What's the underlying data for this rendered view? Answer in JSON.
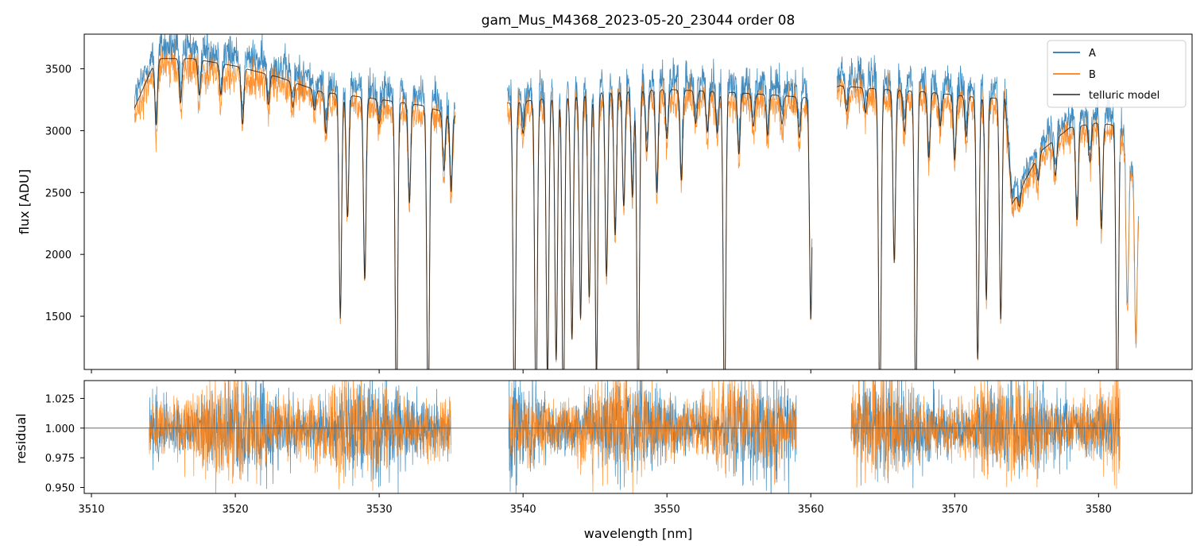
{
  "chart_data": [
    {
      "type": "line",
      "title": "gam_Mus_M4368_2023-05-20_23044  order 08",
      "xlabel": "",
      "ylabel": "flux [ADU]",
      "xlim": [
        3509.5,
        3586.5
      ],
      "ylim": [
        1070,
        3780
      ],
      "xticks": [
        3510,
        3520,
        3530,
        3540,
        3550,
        3560,
        3570,
        3580
      ],
      "yticks": [
        1500,
        2000,
        2500,
        3000,
        3500
      ],
      "ytick_labels": [
        "1500",
        "2000",
        "2500",
        "3000",
        "3500"
      ],
      "legend": {
        "position": "upper-right",
        "entries": [
          {
            "name": "A",
            "color": "#1f77b4"
          },
          {
            "name": "B",
            "color": "#ff7f0e"
          },
          {
            "name": "telluric model",
            "color": "#444444"
          }
        ]
      },
      "series": [
        {
          "name": "A",
          "color": "#1f77b4",
          "x_range": [
            3513.0,
            3582.8
          ],
          "noise": 0.022,
          "scale": 1.02
        },
        {
          "name": "B",
          "color": "#ff7f0e",
          "x_range": [
            3513.0,
            3582.8
          ],
          "noise": 0.022,
          "scale": 0.975
        },
        {
          "name": "telluric model",
          "color": "#222222",
          "x_range": [
            3513.0,
            3581.5
          ],
          "noise": 0.0,
          "scale": 0.995
        }
      ],
      "continuum_nodes": [
        [
          3513.0,
          3200
        ],
        [
          3514.5,
          3600
        ],
        [
          3517.0,
          3600
        ],
        [
          3520.0,
          3540
        ],
        [
          3523.0,
          3450
        ],
        [
          3526.0,
          3330
        ],
        [
          3530.0,
          3270
        ],
        [
          3533.0,
          3220
        ],
        [
          3535.2,
          3140
        ],
        [
          3539.0,
          3240
        ],
        [
          3542.0,
          3280
        ],
        [
          3546.0,
          3330
        ],
        [
          3550.0,
          3350
        ],
        [
          3554.0,
          3330
        ],
        [
          3558.0,
          3300
        ],
        [
          3560.0,
          3280
        ],
        [
          3562.0,
          3380
        ],
        [
          3565.0,
          3350
        ],
        [
          3568.0,
          3330
        ],
        [
          3572.0,
          3280
        ],
        [
          3573.5,
          3280
        ],
        [
          3574.0,
          2420
        ],
        [
          3576.0,
          2850
        ],
        [
          3578.0,
          3040
        ],
        [
          3580.0,
          3080
        ],
        [
          3581.5,
          3050
        ],
        [
          3582.8,
          2500
        ]
      ],
      "gaps": [
        [
          3535.3,
          3538.9
        ],
        [
          3560.1,
          3561.8
        ]
      ],
      "absorption_lines": [
        [
          3514.5,
          0.85
        ],
        [
          3516.2,
          0.9
        ],
        [
          3517.5,
          0.92
        ],
        [
          3519.0,
          0.93
        ],
        [
          3520.5,
          0.87
        ],
        [
          3522.3,
          0.93
        ],
        [
          3524.0,
          0.94
        ],
        [
          3525.5,
          0.95
        ],
        [
          3526.3,
          0.9
        ],
        [
          3527.3,
          0.45
        ],
        [
          3527.8,
          0.7
        ],
        [
          3529.0,
          0.55
        ],
        [
          3530.0,
          0.94
        ],
        [
          3531.2,
          0.2
        ],
        [
          3532.1,
          0.75
        ],
        [
          3533.4,
          0.2
        ],
        [
          3534.5,
          0.85
        ],
        [
          3535.0,
          0.8
        ],
        [
          3539.4,
          0.2
        ],
        [
          3540.0,
          0.92
        ],
        [
          3540.9,
          0.2
        ],
        [
          3541.7,
          0.3
        ],
        [
          3542.3,
          0.35
        ],
        [
          3542.8,
          0.2
        ],
        [
          3543.4,
          0.4
        ],
        [
          3544.0,
          0.45
        ],
        [
          3544.6,
          0.5
        ],
        [
          3545.1,
          0.3
        ],
        [
          3545.8,
          0.55
        ],
        [
          3546.4,
          0.65
        ],
        [
          3547.0,
          0.72
        ],
        [
          3547.6,
          0.74
        ],
        [
          3548.0,
          0.22
        ],
        [
          3548.6,
          0.85
        ],
        [
          3549.3,
          0.75
        ],
        [
          3550.0,
          0.88
        ],
        [
          3551.0,
          0.78
        ],
        [
          3552.0,
          0.92
        ],
        [
          3552.8,
          0.9
        ],
        [
          3553.5,
          0.9
        ],
        [
          3554.0,
          0.2
        ],
        [
          3555.0,
          0.85
        ],
        [
          3556.0,
          0.92
        ],
        [
          3557.0,
          0.9
        ],
        [
          3558.0,
          0.93
        ],
        [
          3559.2,
          0.9
        ],
        [
          3560.0,
          0.45
        ],
        [
          3562.5,
          0.94
        ],
        [
          3563.8,
          0.94
        ],
        [
          3564.8,
          0.2
        ],
        [
          3565.8,
          0.58
        ],
        [
          3566.5,
          0.9
        ],
        [
          3567.3,
          0.2
        ],
        [
          3568.2,
          0.84
        ],
        [
          3569.0,
          0.92
        ],
        [
          3570.0,
          0.84
        ],
        [
          3570.8,
          0.9
        ],
        [
          3571.6,
          0.35
        ],
        [
          3572.2,
          0.5
        ],
        [
          3573.2,
          0.45
        ],
        [
          3574.5,
          0.95
        ],
        [
          3575.8,
          0.93
        ],
        [
          3577.0,
          0.9
        ],
        [
          3578.5,
          0.75
        ],
        [
          3579.4,
          0.9
        ],
        [
          3580.2,
          0.72
        ],
        [
          3581.3,
          0.2
        ],
        [
          3582.0,
          0.55
        ],
        [
          3582.6,
          0.5
        ]
      ]
    },
    {
      "type": "line",
      "title": "",
      "xlabel": "wavelength [nm]",
      "ylabel": "residual",
      "xlim": [
        3509.5,
        3586.5
      ],
      "ylim": [
        0.945,
        1.04
      ],
      "xticks": [
        3510,
        3520,
        3530,
        3540,
        3550,
        3560,
        3570,
        3580
      ],
      "xtick_labels": [
        "3510",
        "3520",
        "3530",
        "3540",
        "3550",
        "3560",
        "3570",
        "3580"
      ],
      "yticks": [
        0.95,
        0.975,
        1.0,
        1.025
      ],
      "ytick_labels": [
        "0.950",
        "0.975",
        "1.000",
        "1.025"
      ],
      "reference_line": 1.0,
      "series": [
        {
          "name": "A",
          "color": "#1f77b4",
          "segments": [
            [
              3514.0,
              3535.0
            ],
            [
              3539.0,
              3559.0
            ],
            [
              3562.8,
              3581.5
            ]
          ]
        },
        {
          "name": "B",
          "color": "#ff7f0e",
          "segments": [
            [
              3514.0,
              3535.0
            ],
            [
              3539.0,
              3559.0
            ],
            [
              3562.8,
              3581.5
            ]
          ]
        }
      ]
    }
  ]
}
